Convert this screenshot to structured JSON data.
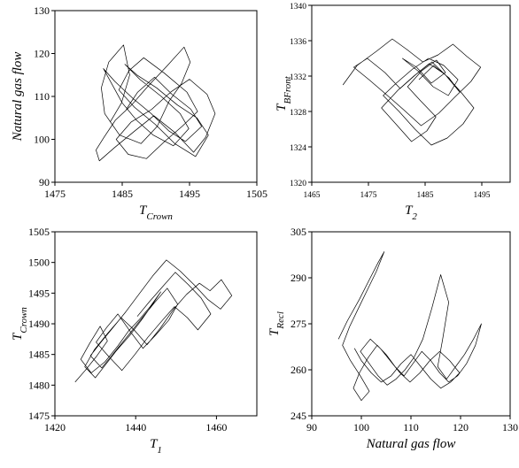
{
  "chart_data": [
    {
      "type": "line",
      "panel": "top-left",
      "xlabel_main": "T",
      "xlabel_sub": "Crown",
      "ylabel_main": "Natural gas flow",
      "ylabel_sub": "",
      "xlim": [
        1475,
        1505
      ],
      "ylim": [
        90,
        130
      ],
      "xticks": [
        1475,
        1485,
        1495,
        1505
      ],
      "yticks": [
        90,
        100,
        110,
        120,
        130
      ],
      "grid": false,
      "line_color": "#000000",
      "x": [
        1483.2,
        1484.9,
        1486.1,
        1485.2,
        1483.0,
        1481.9,
        1482.4,
        1484.6,
        1487.8,
        1490.2,
        1492.0,
        1493.8,
        1495.1,
        1494.2,
        1491.6,
        1488.9,
        1486.4,
        1484.0,
        1482.3,
        1481.1,
        1481.6,
        1483.8,
        1486.9,
        1489.7,
        1492.9,
        1495.6,
        1497.4,
        1498.8,
        1497.6,
        1495.0,
        1492.2,
        1489.4,
        1486.3,
        1484.1,
        1485.9,
        1488.6,
        1491.3,
        1493.9,
        1496.2,
        1494.6,
        1491.2,
        1488.2,
        1486.0,
        1484.5,
        1486.8,
        1489.9,
        1492.8,
        1495.9,
        1497.8,
        1496.1,
        1493.2,
        1490.1,
        1487.2,
        1485.4,
        1487.6,
        1490.8,
        1493.6,
        1494.9,
        1492.6,
        1489.6,
        1487.1,
        1485.0,
        1483.6,
        1482.2,
        1483.9,
        1486.6,
        1489.3,
        1491.9,
        1494.4,
        1496.8,
        1495.2,
        1492.4,
        1489.8,
        1487.3,
        1485.6
      ],
      "y": [
        104.0,
        108.5,
        115.0,
        122.0,
        118.0,
        112.0,
        106.0,
        101.0,
        99.0,
        103.0,
        109.0,
        113.0,
        118.0,
        121.5,
        117.0,
        112.5,
        108.0,
        104.5,
        100.5,
        97.5,
        95.0,
        98.0,
        102.0,
        105.5,
        101.5,
        97.0,
        100.5,
        106.0,
        110.5,
        114.0,
        111.0,
        107.0,
        104.0,
        100.0,
        96.5,
        95.5,
        99.5,
        103.0,
        106.5,
        111.0,
        115.5,
        119.0,
        116.0,
        111.5,
        107.5,
        103.5,
        99.0,
        96.0,
        101.0,
        105.0,
        108.0,
        112.0,
        115.0,
        117.5,
        114.0,
        110.0,
        106.0,
        102.5,
        98.5,
        101.0,
        104.5,
        108.5,
        112.5,
        116.5,
        113.5,
        109.5,
        106.0,
        102.0,
        99.5,
        103.0,
        107.0,
        110.5,
        114.5,
        111.0,
        107.0
      ]
    },
    {
      "type": "line",
      "panel": "top-right",
      "xlabel_main": "T",
      "xlabel_sub": "2",
      "ylabel_main": "T",
      "ylabel_sub": "BFront",
      "xlim": [
        1465,
        1500
      ],
      "ylim": [
        1320,
        1340
      ],
      "xticks": [
        1465,
        1475,
        1485,
        1495
      ],
      "yticks": [
        1320,
        1324,
        1328,
        1332,
        1336,
        1340
      ],
      "grid": false,
      "line_color": "#000000",
      "x": [
        1470.5,
        1473.0,
        1476.4,
        1479.2,
        1481.8,
        1484.6,
        1487.3,
        1489.9,
        1492.4,
        1494.8,
        1493.1,
        1490.2,
        1487.4,
        1484.3,
        1481.2,
        1478.0,
        1475.1,
        1472.4,
        1474.8,
        1477.9,
        1480.6,
        1483.4,
        1486.2,
        1488.8,
        1491.3,
        1493.6,
        1491.7,
        1488.9,
        1486.1,
        1483.2,
        1480.4,
        1477.6,
        1479.9,
        1482.8,
        1485.6,
        1488.3,
        1490.8,
        1489.1,
        1486.4,
        1483.7,
        1481.0,
        1483.5,
        1486.1,
        1488.6,
        1487.0,
        1484.4,
        1481.9,
        1484.2,
        1486.9,
        1485.3,
        1482.6,
        1480.1,
        1477.3,
        1480.2,
        1483.0,
        1485.7,
        1488.5,
        1491.1,
        1489.2,
        1486.5,
        1483.9
      ],
      "y": [
        1331.0,
        1333.2,
        1334.8,
        1336.2,
        1335.0,
        1333.6,
        1334.4,
        1335.6,
        1334.2,
        1333.0,
        1331.4,
        1329.6,
        1327.8,
        1326.4,
        1328.2,
        1330.0,
        1331.6,
        1333.0,
        1334.0,
        1332.4,
        1330.6,
        1332.2,
        1333.6,
        1332.0,
        1330.2,
        1328.4,
        1326.6,
        1325.0,
        1324.2,
        1326.0,
        1328.0,
        1329.8,
        1331.2,
        1332.8,
        1334.0,
        1333.2,
        1331.6,
        1329.8,
        1330.8,
        1332.6,
        1334.0,
        1333.0,
        1331.2,
        1332.4,
        1333.8,
        1332.6,
        1330.8,
        1329.2,
        1327.4,
        1325.8,
        1324.6,
        1326.4,
        1328.4,
        1330.4,
        1332.0,
        1333.4,
        1332.2,
        1330.2,
        1331.8,
        1333.2,
        1331.6
      ]
    },
    {
      "type": "line",
      "panel": "bottom-left",
      "xlabel_main": "T",
      "xlabel_sub": "1",
      "ylabel_main": "T",
      "ylabel_sub": "Crown",
      "xlim": [
        1420,
        1470
      ],
      "ylim": [
        1475,
        1505
      ],
      "xticks": [
        1420,
        1440,
        1460
      ],
      "yticks": [
        1475,
        1480,
        1485,
        1490,
        1495,
        1500,
        1505
      ],
      "grid": false,
      "line_color": "#000000",
      "x": [
        1425.0,
        1427.5,
        1430.2,
        1433.0,
        1431.2,
        1428.6,
        1426.4,
        1429.0,
        1432.4,
        1435.6,
        1438.2,
        1440.8,
        1443.6,
        1446.2,
        1444.0,
        1441.2,
        1438.4,
        1435.2,
        1432.6,
        1430.0,
        1427.4,
        1429.8,
        1433.0,
        1436.4,
        1439.6,
        1442.8,
        1446.0,
        1449.4,
        1452.6,
        1455.8,
        1458.4,
        1461.2,
        1463.8,
        1461.0,
        1457.8,
        1454.4,
        1451.0,
        1447.6,
        1444.2,
        1440.8,
        1437.6,
        1434.4,
        1431.4,
        1428.8,
        1431.6,
        1434.8,
        1438.0,
        1441.4,
        1444.6,
        1447.8,
        1450.4,
        1448.2,
        1445.0,
        1441.8,
        1438.6,
        1435.6,
        1432.8,
        1430.2,
        1433.4,
        1436.6,
        1439.8,
        1443.0,
        1446.4,
        1449.6,
        1452.8,
        1455.4,
        1458.6,
        1456.2,
        1453.0,
        1449.8,
        1446.6,
        1443.4,
        1440.4
      ],
      "y": [
        1480.5,
        1482.4,
        1484.6,
        1487.2,
        1489.6,
        1486.8,
        1484.2,
        1482.0,
        1483.8,
        1486.4,
        1488.8,
        1490.6,
        1492.8,
        1495.2,
        1493.0,
        1490.4,
        1488.0,
        1485.6,
        1483.4,
        1481.2,
        1483.0,
        1485.8,
        1488.4,
        1491.0,
        1489.0,
        1486.6,
        1489.2,
        1492.4,
        1494.8,
        1496.6,
        1495.4,
        1497.2,
        1494.6,
        1492.4,
        1494.0,
        1496.4,
        1498.6,
        1500.4,
        1497.8,
        1494.8,
        1492.0,
        1489.4,
        1487.0,
        1484.8,
        1482.8,
        1485.4,
        1488.0,
        1490.8,
        1493.4,
        1495.8,
        1493.2,
        1490.6,
        1488.2,
        1486.0,
        1488.8,
        1491.6,
        1489.4,
        1487.0,
        1484.6,
        1482.4,
        1485.0,
        1487.8,
        1490.4,
        1492.8,
        1491.0,
        1489.0,
        1491.6,
        1494.2,
        1496.4,
        1498.4,
        1496.0,
        1493.6,
        1491.2
      ]
    },
    {
      "type": "line",
      "panel": "bottom-right",
      "xlabel_main": "Natural gas flow",
      "xlabel_sub": "",
      "ylabel_main": "T",
      "ylabel_sub": "Recl",
      "xlim": [
        90,
        130
      ],
      "ylim": [
        245,
        305
      ],
      "xticks": [
        90,
        100,
        110,
        120,
        130
      ],
      "yticks": [
        245,
        260,
        275,
        290,
        305
      ],
      "grid": false,
      "line_color": "#000000",
      "x": [
        95.4,
        97.2,
        99.6,
        101.8,
        103.4,
        104.6,
        103.0,
        101.2,
        99.4,
        97.6,
        96.2,
        97.8,
        99.8,
        101.6,
        100.0,
        98.4,
        99.6,
        101.4,
        103.2,
        105.0,
        106.8,
        108.6,
        110.4,
        112.2,
        114.0,
        115.8,
        117.6,
        119.4,
        121.2,
        123.0,
        124.2,
        122.6,
        120.8,
        119.0,
        117.2,
        115.4,
        116.4,
        117.6,
        116.0,
        114.2,
        112.4,
        110.6,
        108.8,
        107.0,
        105.2,
        103.4,
        101.6,
        99.8,
        101.8,
        103.8,
        105.8,
        107.8,
        109.8,
        111.8,
        113.8,
        115.8,
        117.8,
        119.8,
        118.0,
        116.0,
        114.0,
        112.0,
        110.0,
        108.0,
        106.0,
        104.0,
        102.0,
        100.0,
        98.6
      ],
      "y": [
        270.0,
        276.0,
        283.0,
        290.0,
        295.0,
        298.5,
        292.0,
        286.0,
        280.0,
        274.0,
        268.0,
        263.0,
        258.0,
        253.0,
        250.0,
        254.0,
        259.0,
        264.0,
        268.0,
        265.0,
        261.0,
        258.0,
        262.0,
        266.0,
        263.0,
        259.0,
        256.0,
        258.0,
        262.0,
        268.0,
        275.0,
        270.0,
        265.0,
        261.0,
        257.0,
        261.0,
        270.0,
        282.0,
        291.0,
        280.0,
        270.0,
        264.0,
        260.0,
        257.0,
        255.0,
        258.0,
        262.0,
        266.0,
        270.0,
        267.0,
        263.0,
        259.0,
        256.0,
        259.0,
        263.0,
        266.0,
        263.0,
        259.0,
        256.0,
        254.0,
        257.0,
        261.0,
        265.0,
        262.0,
        258.0,
        256.0,
        259.0,
        263.0,
        267.0
      ]
    }
  ]
}
